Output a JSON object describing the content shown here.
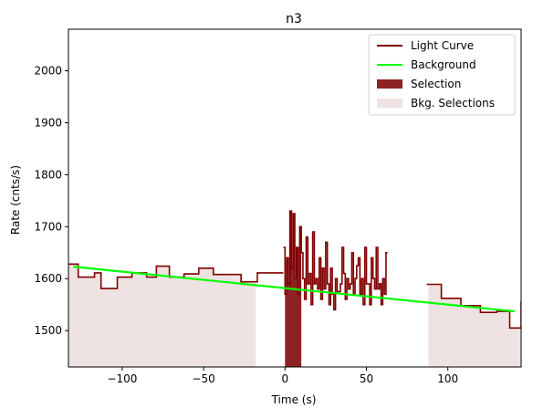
{
  "chart_data": {
    "type": "line",
    "title": "n3",
    "xlabel": "Time (s)",
    "ylabel": "Rate (cnts/s)",
    "xlim": [
      -133,
      145
    ],
    "ylim": [
      1430,
      2080
    ],
    "xticks": [
      -100,
      -50,
      0,
      50,
      100
    ],
    "xtick_labels": [
      "−100",
      "−50",
      "0",
      "50",
      "100"
    ],
    "yticks": [
      1500,
      1600,
      1700,
      1800,
      1900,
      2000
    ],
    "ytick_labels": [
      "1500",
      "1600",
      "1700",
      "1800",
      "1900",
      "2000"
    ],
    "grid": false,
    "legend_position": "upper right",
    "legend": [
      {
        "label": "Light Curve",
        "kind": "line",
        "color": "#800000"
      },
      {
        "label": "Background",
        "kind": "line",
        "color": "#00ff00"
      },
      {
        "label": "Selection",
        "kind": "patch",
        "color": "#8b2323"
      },
      {
        "label": "Bkg. Selections",
        "kind": "patch",
        "color": "#efe2e2"
      }
    ],
    "light_curve": {
      "name": "Light Curve",
      "color": "#800000",
      "drawstyle": "steps-post",
      "coarse": {
        "x": [
          -133,
          -127,
          -117,
          -113,
          -103,
          -94,
          -85,
          -79,
          -71,
          -62,
          -53,
          -44,
          -35,
          -27,
          -17,
          -9
        ],
        "y": [
          1628,
          1603,
          1611,
          1581,
          1603,
          1611,
          1603,
          1624,
          1603,
          1609,
          1620,
          1608,
          1608,
          1594,
          1611,
          1611
        ]
      },
      "fine": {
        "x": [
          -1,
          0,
          1,
          2,
          3,
          4,
          5,
          6,
          7,
          8,
          9,
          10,
          11,
          12,
          13,
          14,
          15,
          16,
          17,
          18,
          19,
          20,
          21,
          22,
          23,
          24,
          25,
          26,
          27,
          28,
          29,
          30,
          31,
          32,
          33,
          34,
          35,
          36,
          37,
          38,
          39,
          40,
          41,
          42,
          43,
          44,
          45,
          46,
          47,
          48,
          49,
          50,
          51,
          52,
          53,
          54,
          55,
          56,
          57,
          58,
          59,
          60,
          61,
          62
        ],
        "y": [
          1660,
          1570,
          1640,
          1590,
          1730,
          1620,
          1725,
          1600,
          1660,
          1570,
          1700,
          1650,
          1600,
          1560,
          1680,
          1590,
          1610,
          1550,
          1690,
          1590,
          1600,
          1580,
          1640,
          1560,
          1620,
          1580,
          1670,
          1590,
          1550,
          1620,
          1570,
          1540,
          1600,
          1575,
          1575,
          1590,
          1660,
          1610,
          1560,
          1600,
          1580,
          1590,
          1650,
          1570,
          1600,
          1625,
          1640,
          1570,
          1600,
          1550,
          1660,
          1590,
          1590,
          1550,
          1640,
          1600,
          1580,
          1660,
          1580,
          1590,
          1550,
          1600,
          1570,
          1650
        ]
      },
      "tail": {
        "x": [
          87,
          96,
          108,
          120,
          130,
          138,
          145
        ],
        "y": [
          1589,
          1562,
          1548,
          1535,
          1537,
          1505,
          1557
        ]
      }
    },
    "background": {
      "name": "Background",
      "color": "#00ff00",
      "x": [
        -130,
        141
      ],
      "y": [
        1623,
        1537
      ]
    },
    "selection": {
      "name": "Selection",
      "color": "#8b2323",
      "x_range": [
        0,
        10
      ]
    },
    "bkg_selections": {
      "name": "Bkg. Selections",
      "color": "#efe2e2",
      "ranges": [
        [
          -133,
          -18
        ],
        [
          88,
          145
        ]
      ]
    }
  }
}
